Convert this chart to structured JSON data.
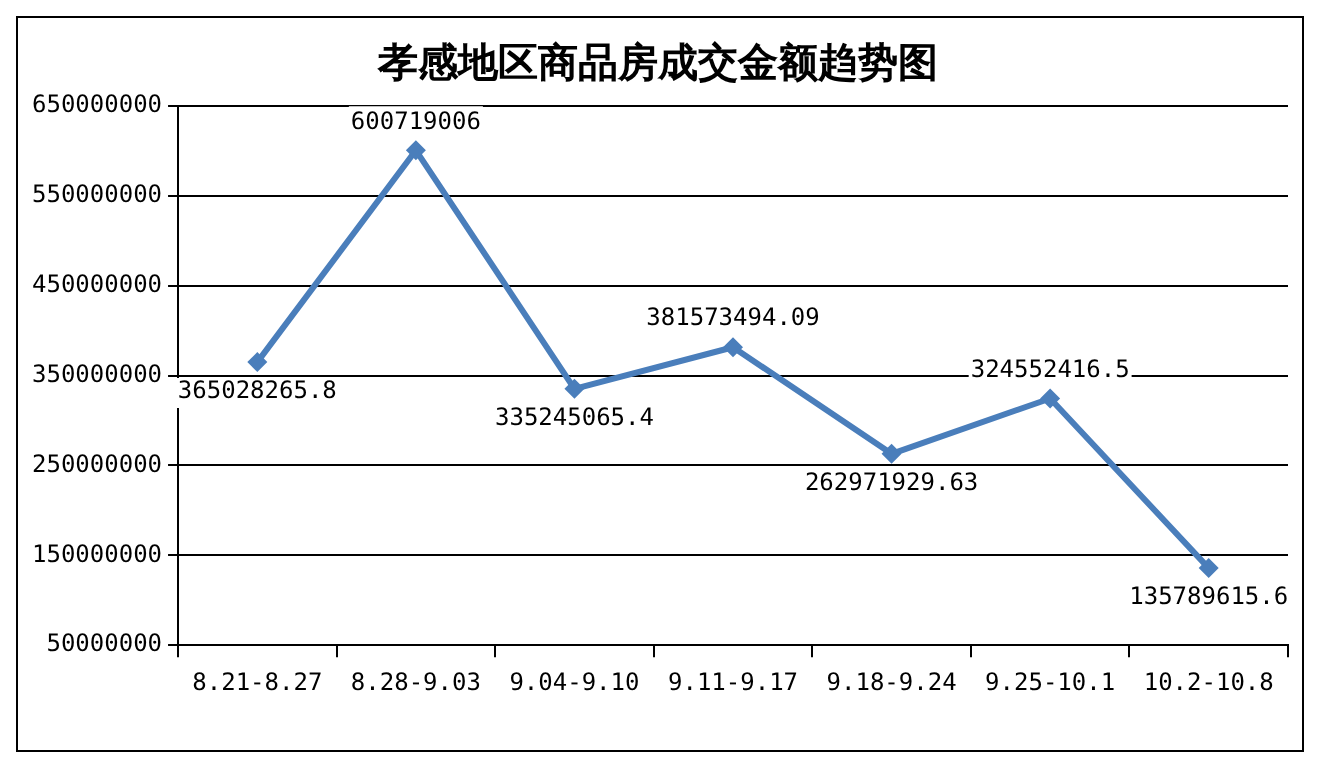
{
  "chart_data": {
    "type": "line",
    "title": "孝感地区商品房成交金额趋势图",
    "categories": [
      "8.21-8.27",
      "8.28-9.03",
      "9.04-9.10",
      "9.11-9.17",
      "9.18-9.24",
      "9.25-10.1",
      "10.2-10.8"
    ],
    "series": [
      {
        "color": "#4a7ebb",
        "values": [
          365028265.8,
          600719006,
          335245065.4,
          381573494.09,
          262971929.63,
          324552416.5,
          135789615.6
        ]
      }
    ],
    "ylim": [
      50000000,
      650000000
    ],
    "yticks": [
      50000000,
      150000000,
      250000000,
      350000000,
      450000000,
      550000000,
      650000000
    ],
    "grid": "y",
    "legend": false,
    "marker": "diamond",
    "line_style": "solid",
    "data_labels": true
  }
}
